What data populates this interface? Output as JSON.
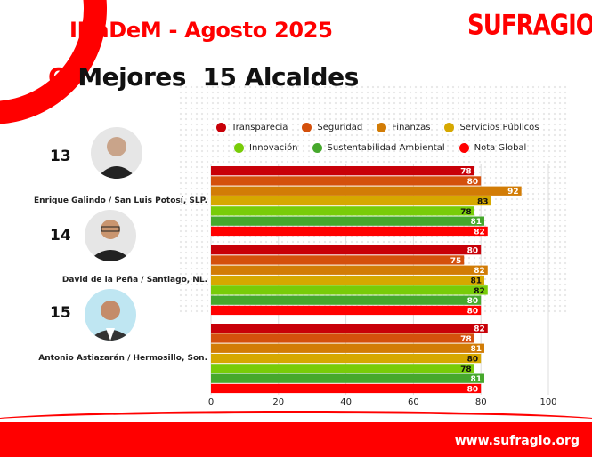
{
  "header": {
    "title": "INaDeM - Agosto 2025",
    "logo": "SUFRAGIO",
    "subtitle_marker": "O",
    "subtitle": "Mejores  15 Alcaldes"
  },
  "footer": {
    "url": "www.sufragio.org"
  },
  "people": [
    {
      "rank": "13",
      "name": "Enrique Galindo / San Luis Potosí, SLP."
    },
    {
      "rank": "14",
      "name": "David de la Peña / Santiago, NL."
    },
    {
      "rank": "15",
      "name": "Antonio Astiazarán / Hermosillo, Son."
    }
  ],
  "chart_data": {
    "type": "bar",
    "orientation": "horizontal",
    "xlim": [
      0,
      100
    ],
    "xticks": [
      "0",
      "20",
      "40",
      "60",
      "80",
      "100"
    ],
    "grid": true,
    "legend_position": "top",
    "categories": [
      "Enrique Galindo / San Luis Potosí, SLP.",
      "David de la Peña / Santiago, NL.",
      "Antonio Astiazarán / Hermosillo, Son."
    ],
    "series": [
      {
        "name": "Transparecia",
        "color": "#c80008",
        "label_color": "#ffffff",
        "values": [
          78,
          80,
          82
        ]
      },
      {
        "name": "Seguridad",
        "color": "#d4500c",
        "label_color": "#ffffff",
        "values": [
          80,
          75,
          78
        ]
      },
      {
        "name": "Finanzas",
        "color": "#d27c06",
        "label_color": "#ffffff",
        "values": [
          92,
          82,
          81
        ]
      },
      {
        "name": "Servicios Públicos",
        "color": "#d6a800",
        "label_color": "#111111",
        "values": [
          83,
          81,
          80
        ]
      },
      {
        "name": "Innovación",
        "color": "#78cc08",
        "label_color": "#111111",
        "values": [
          78,
          82,
          78
        ]
      },
      {
        "name": "Sustentabilidad Ambiental",
        "color": "#46a82c",
        "label_color": "#ffffff",
        "values": [
          81,
          80,
          81
        ]
      },
      {
        "name": "Nota Global",
        "color": "#ff0000",
        "label_color": "#ffffff",
        "values": [
          82,
          80,
          80
        ]
      }
    ]
  }
}
